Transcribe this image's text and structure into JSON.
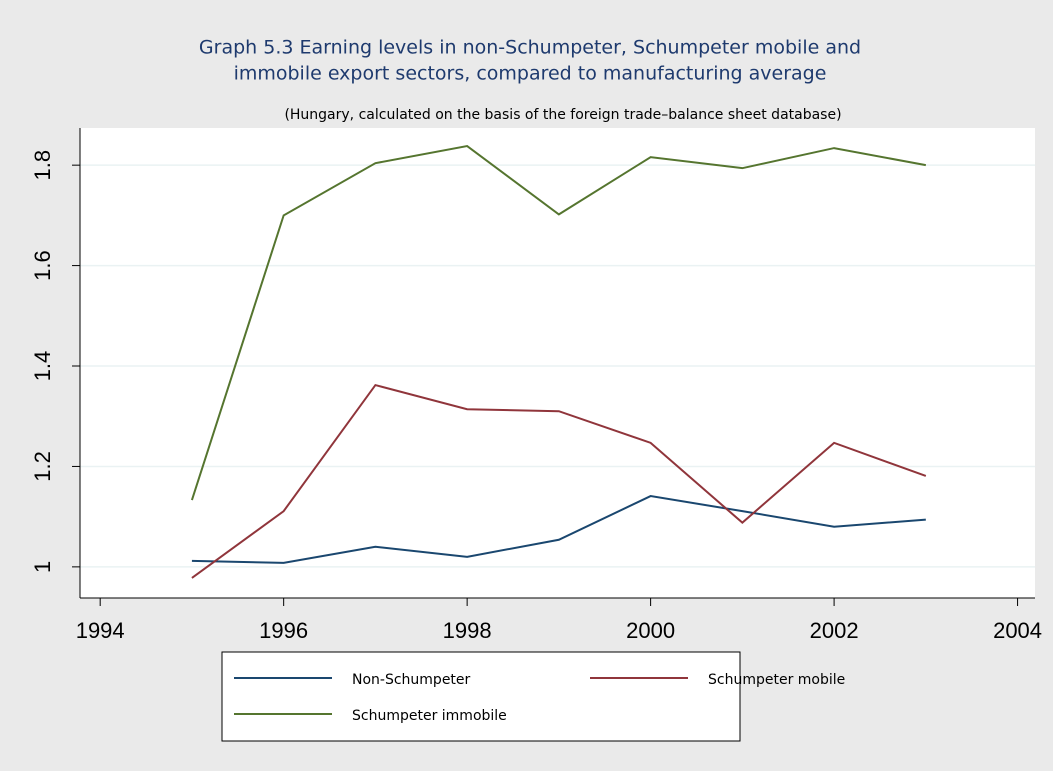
{
  "chart_data": {
    "type": "line",
    "title": [
      "Graph 5.3 Earning levels in non-Schumpeter, Schumpeter mobile and",
      "immobile export sectors, compared to manufacturing average"
    ],
    "subtitle": "(Hungary, calculated on the basis of the foreign trade–balance sheet database)",
    "x": [
      1995,
      1996,
      1997,
      1998,
      1999,
      2000,
      2001,
      2002,
      2003
    ],
    "series": [
      {
        "name": "Non-Schumpeter",
        "color": "#1a476f",
        "values": [
          1.012,
          1.008,
          1.04,
          1.02,
          1.054,
          1.141,
          1.111,
          1.08,
          1.094
        ]
      },
      {
        "name": "Schumpeter mobile",
        "color": "#90353b",
        "values": [
          0.978,
          1.111,
          1.362,
          1.314,
          1.31,
          1.247,
          1.088,
          1.247,
          1.181
        ]
      },
      {
        "name": "Schumpeter immobile",
        "color": "#55752f",
        "values": [
          1.133,
          1.7,
          1.804,
          1.838,
          1.702,
          1.816,
          1.794,
          1.834,
          1.8
        ]
      }
    ],
    "xlim": [
      1993.78,
      2004.19
    ],
    "xticks": [
      1994,
      1996,
      1998,
      2000,
      2002,
      2004
    ],
    "ylim": [
      0.938,
      1.874
    ],
    "yticks": [
      1,
      1.2,
      1.4,
      1.6,
      1.8
    ],
    "grid": true,
    "legend": "bottom"
  }
}
